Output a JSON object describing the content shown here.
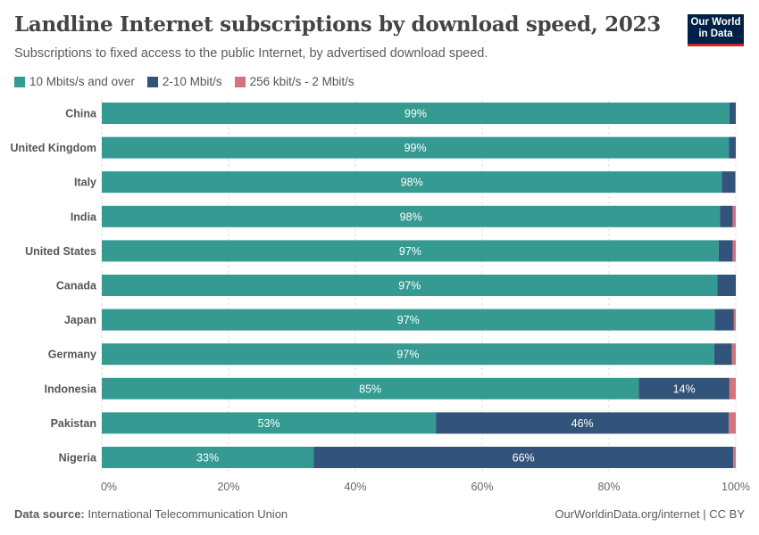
{
  "header": {
    "title": "Landline Internet subscriptions by download speed, 2023",
    "subtitle": "Subscriptions to fixed access to the public Internet, by advertised download speed.",
    "logo": "Our World in Data"
  },
  "footer": {
    "source_label": "Data source:",
    "source": "International Telecommunication Union",
    "credit": "OurWorldinData.org/internet | CC BY"
  },
  "chart_data": {
    "type": "bar",
    "orientation": "horizontal",
    "stacked": true,
    "title": "Landline Internet subscriptions by download speed, 2023",
    "subtitle": "Subscriptions to fixed access to the public Internet, by advertised download speed.",
    "categories": [
      "China",
      "United Kingdom",
      "Italy",
      "India",
      "United States",
      "Canada",
      "Japan",
      "Germany",
      "Indonesia",
      "Pakistan",
      "Nigeria"
    ],
    "series": [
      {
        "name": "10 Mbits/s and over",
        "color": "#359a91",
        "values": [
          99.0,
          98.9,
          97.8,
          97.5,
          97.3,
          97.1,
          96.7,
          96.6,
          84.7,
          52.7,
          33.4
        ]
      },
      {
        "name": "2-10 Mbit/s",
        "color": "#33547a",
        "values": [
          1.0,
          1.1,
          2.1,
          2.0,
          2.2,
          2.9,
          3.0,
          2.8,
          14.3,
          46.2,
          66.2
        ]
      },
      {
        "name": "256 kbit/s - 2 Mbit/s",
        "color": "#d4737f",
        "values": [
          0,
          0,
          0.1,
          0.5,
          0.5,
          0,
          0.3,
          0.6,
          1.0,
          1.1,
          0.4
        ]
      }
    ],
    "xlim": [
      0,
      100
    ],
    "xticks": [
      "0%",
      "20%",
      "40%",
      "60%",
      "80%",
      "100%"
    ],
    "grid": true,
    "legend": "top-left"
  }
}
